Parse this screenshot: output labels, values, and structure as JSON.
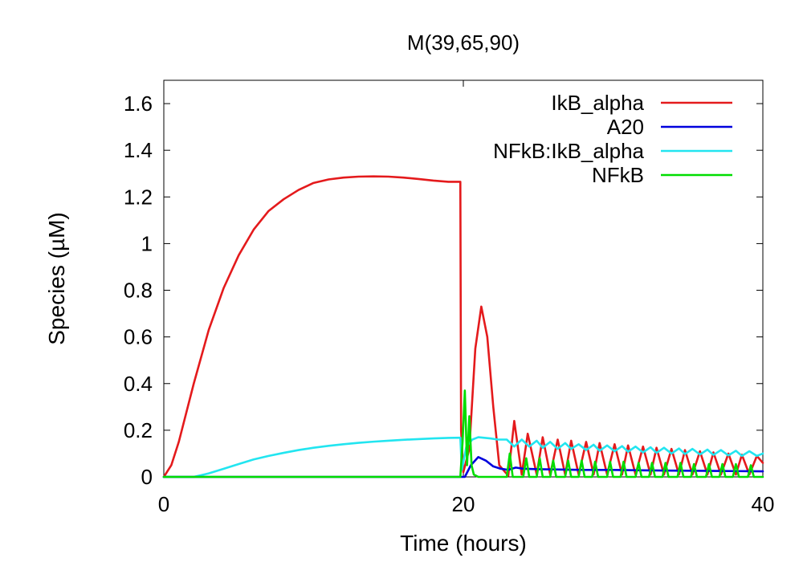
{
  "chart_data": {
    "type": "line",
    "title": "M(39,65,90)",
    "xlabel": "Time (hours)",
    "ylabel": "Species (µM)",
    "xlim": [
      0,
      40
    ],
    "ylim": [
      0,
      1.7
    ],
    "xticks": [
      0,
      20,
      40
    ],
    "yticks": [
      0,
      0.2,
      0.4,
      0.6,
      0.8,
      1,
      1.2,
      1.4,
      1.6
    ],
    "xtick_labels": [
      "0",
      "20",
      "40"
    ],
    "ytick_labels": [
      "0",
      "0.2",
      "0.4",
      "0.6",
      "0.8",
      "1",
      "1.2",
      "1.4",
      "1.6"
    ],
    "grid": false,
    "legend": "top-right",
    "series": [
      {
        "name": "IkB_alpha",
        "color": "#e41a1c",
        "x": [
          0,
          0.5,
          1,
          2,
          3,
          4,
          5,
          6,
          7,
          8,
          9,
          10,
          11,
          12,
          13,
          14,
          15,
          16,
          17,
          18,
          19,
          19.8,
          19.85,
          20.0,
          20.4,
          20.8,
          21.2,
          21.6,
          22.0,
          22.4,
          22.8,
          23.0,
          23.4,
          23.9,
          24.3,
          24.9,
          25.3,
          25.8,
          26.3,
          26.8,
          27.2,
          27.7,
          28.2,
          28.7,
          29.1,
          29.6,
          30.1,
          30.6,
          31.0,
          31.5,
          32.0,
          32.5,
          32.9,
          33.4,
          33.9,
          34.4,
          34.8,
          35.3,
          35.8,
          36.3,
          36.7,
          37.2,
          37.7,
          38.2,
          38.6,
          39.1,
          39.6,
          40
        ],
        "y": [
          0,
          0.05,
          0.15,
          0.4,
          0.63,
          0.81,
          0.95,
          1.06,
          1.14,
          1.19,
          1.23,
          1.26,
          1.275,
          1.283,
          1.287,
          1.288,
          1.287,
          1.283,
          1.277,
          1.27,
          1.265,
          1.265,
          0.2,
          0.02,
          0.12,
          0.55,
          0.73,
          0.6,
          0.3,
          0.05,
          0.02,
          0.005,
          0.24,
          0.01,
          0.185,
          0.01,
          0.17,
          0.01,
          0.16,
          0.01,
          0.155,
          0.01,
          0.15,
          0.01,
          0.145,
          0.01,
          0.14,
          0.01,
          0.135,
          0.01,
          0.13,
          0.01,
          0.125,
          0.01,
          0.12,
          0.01,
          0.115,
          0.01,
          0.11,
          0.01,
          0.105,
          0.01,
          0.1,
          0.01,
          0.095,
          0.01,
          0.09,
          0.06
        ]
      },
      {
        "name": "A20",
        "color": "#0000dd",
        "x": [
          0,
          19.8,
          20.1,
          20.5,
          21.0,
          21.5,
          22.0,
          22.5,
          23.0,
          23.5,
          24,
          25,
          26,
          28,
          30,
          32,
          34,
          36,
          38,
          40
        ],
        "y": [
          0,
          0,
          0.0,
          0.05,
          0.085,
          0.07,
          0.045,
          0.035,
          0.03,
          0.04,
          0.035,
          0.033,
          0.032,
          0.03,
          0.03,
          0.028,
          0.027,
          0.026,
          0.025,
          0.024
        ]
      },
      {
        "name": "NFkB:IkB_alpha",
        "color": "#22e5f0",
        "x": [
          0,
          2,
          3,
          4,
          5,
          6,
          7,
          8,
          9,
          10,
          11,
          12,
          13,
          14,
          15,
          16,
          17,
          18,
          19,
          19.8,
          19.9,
          20.2,
          20.6,
          21.0,
          21.8,
          22.3,
          22.9,
          23.4,
          23.9,
          24.4,
          24.9,
          25.3,
          25.8,
          26.3,
          26.8,
          27.2,
          27.7,
          28.2,
          28.7,
          29.1,
          29.6,
          30.1,
          30.6,
          31.0,
          31.5,
          32.0,
          32.5,
          32.9,
          33.4,
          33.9,
          34.4,
          34.8,
          35.3,
          35.8,
          36.3,
          36.7,
          37.2,
          37.7,
          38.2,
          38.6,
          39.1,
          39.6,
          40
        ],
        "y": [
          0,
          0,
          0.015,
          0.035,
          0.055,
          0.075,
          0.09,
          0.103,
          0.115,
          0.125,
          0.133,
          0.14,
          0.146,
          0.151,
          0.155,
          0.159,
          0.162,
          0.165,
          0.167,
          0.168,
          0.03,
          0.13,
          0.16,
          0.17,
          0.165,
          0.16,
          0.16,
          0.13,
          0.16,
          0.13,
          0.155,
          0.125,
          0.15,
          0.12,
          0.145,
          0.12,
          0.14,
          0.115,
          0.138,
          0.112,
          0.135,
          0.11,
          0.132,
          0.108,
          0.13,
          0.105,
          0.127,
          0.103,
          0.125,
          0.1,
          0.122,
          0.098,
          0.12,
          0.096,
          0.117,
          0.094,
          0.115,
          0.092,
          0.112,
          0.09,
          0.11,
          0.09,
          0.1
        ]
      },
      {
        "name": "NFkB",
        "color": "#00dd00",
        "x": [
          0,
          19.8,
          19.95,
          20.1,
          20.25,
          20.4,
          20.55,
          20.7,
          21.0,
          22.9,
          23.1,
          23.3,
          24.0,
          24.2,
          24.4,
          24.9,
          25.1,
          25.3,
          25.8,
          26.0,
          26.2,
          26.8,
          27.0,
          27.2,
          27.7,
          27.9,
          28.1,
          28.6,
          28.8,
          29.0,
          29.6,
          29.8,
          30.0,
          30.5,
          30.7,
          30.9,
          31.5,
          31.7,
          31.9,
          32.4,
          32.6,
          32.8,
          33.3,
          33.5,
          33.7,
          34.3,
          34.5,
          34.7,
          35.2,
          35.4,
          35.6,
          36.2,
          36.4,
          36.6,
          37.1,
          37.3,
          37.5,
          38.0,
          38.2,
          38.4,
          39.0,
          39.2,
          39.4,
          40
        ],
        "y": [
          0,
          0,
          0.15,
          0.37,
          0.05,
          0.26,
          0.05,
          0.01,
          0.0,
          0.0,
          0.1,
          0.0,
          0.0,
          0.08,
          0.0,
          0.0,
          0.08,
          0.0,
          0.0,
          0.07,
          0.0,
          0.0,
          0.07,
          0.0,
          0.0,
          0.07,
          0.0,
          0.0,
          0.065,
          0.0,
          0.0,
          0.065,
          0.0,
          0.0,
          0.065,
          0.0,
          0.0,
          0.06,
          0.0,
          0.0,
          0.06,
          0.0,
          0.0,
          0.06,
          0.0,
          0.0,
          0.06,
          0.0,
          0.0,
          0.055,
          0.0,
          0.0,
          0.055,
          0.0,
          0.0,
          0.055,
          0.0,
          0.0,
          0.055,
          0.0,
          0.0,
          0.05,
          0.0,
          0.0
        ]
      }
    ]
  }
}
